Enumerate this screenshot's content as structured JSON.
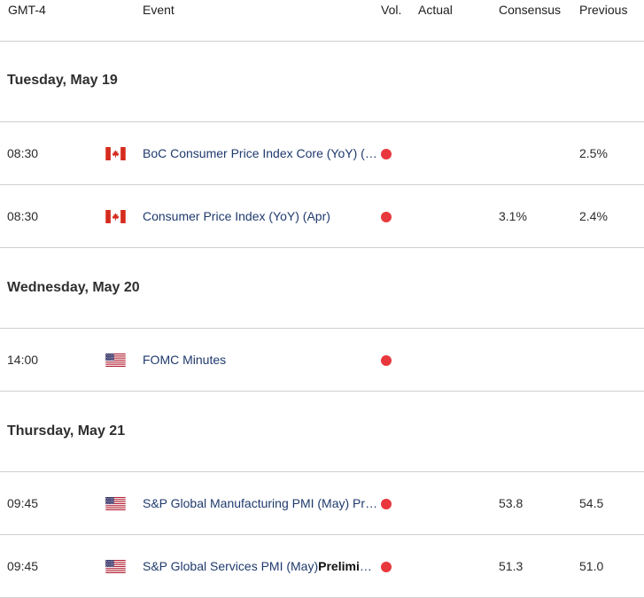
{
  "header": {
    "gmt": "GMT-4",
    "event": "Event",
    "vol": "Vol.",
    "actual": "Actual",
    "consensus": "Consensus",
    "previous": "Previous"
  },
  "days": [
    {
      "label": "Tuesday, May 19",
      "events": [
        {
          "time": "08:30",
          "country": "CA",
          "event": "BoC Consumer Price Index Core (YoY) (Apr)",
          "actual": "",
          "consensus": "",
          "previous": "2.5%"
        },
        {
          "time": "08:30",
          "country": "CA",
          "event": "Consumer Price Index (YoY) (Apr)",
          "actual": "",
          "consensus": "3.1%",
          "previous": "2.4%"
        }
      ]
    },
    {
      "label": "Wednesday, May 20",
      "events": [
        {
          "time": "14:00",
          "country": "US",
          "event": "FOMC Minutes",
          "actual": "",
          "consensus": "",
          "previous": ""
        }
      ]
    },
    {
      "label": "Thursday, May 21",
      "events": [
        {
          "time": "09:45",
          "country": "US",
          "event": "S&P Global Manufacturing PMI (May) Preliminary",
          "actual": "",
          "consensus": "53.8",
          "previous": "54.5"
        },
        {
          "time": "09:45",
          "country": "US",
          "event_main": "S&P Global Services PMI (May)",
          "event_bold": "Preliminary",
          "actual": "",
          "consensus": "51.3",
          "previous": "51.0"
        }
      ]
    }
  ],
  "colors": {
    "volatility_high": "#e8383d",
    "event_link": "#1f3a6e",
    "divider": "#cfcfcf"
  }
}
